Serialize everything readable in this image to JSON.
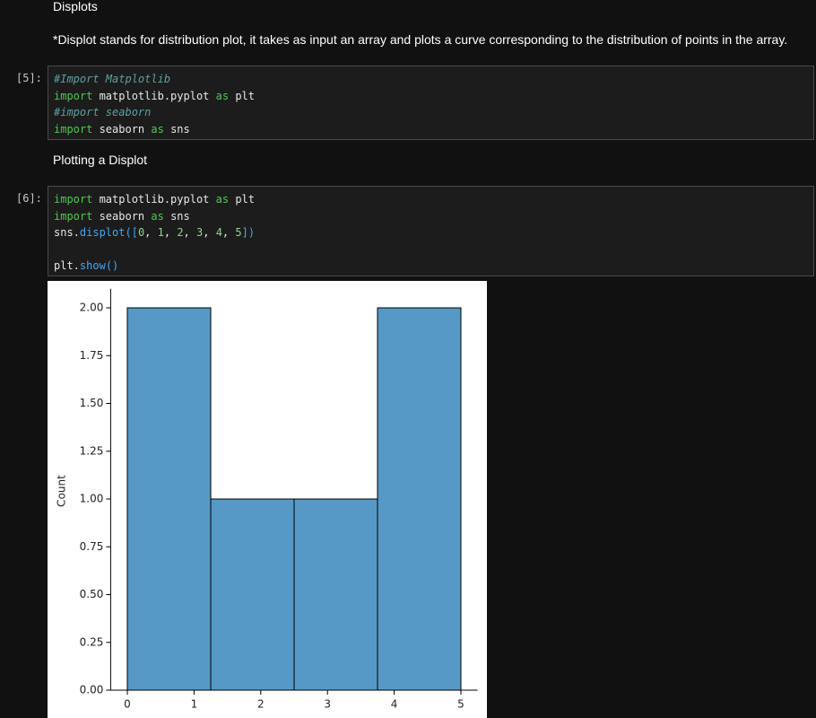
{
  "cells": [
    {
      "text": "Displots"
    },
    {
      "text": "*Displot stands for distribution plot, it takes as input an array and plots a curve corresponding to the distribution of points in the array."
    },
    {
      "prompt": "[5]:",
      "source": [
        [
          "#Import Matplotlib"
        ],
        [
          "import",
          " matplotlib.pyplot ",
          "as",
          " plt"
        ],
        [
          "#import seaborn"
        ],
        [
          "import",
          " seaborn ",
          "as",
          " sns"
        ]
      ]
    },
    {
      "text": "Plotting a Displot"
    },
    {
      "prompt": "[6]:",
      "source": [
        [
          "import",
          " matplotlib.pyplot ",
          "as",
          " plt"
        ],
        [
          "import",
          " seaborn ",
          "as",
          " sns"
        ],
        [
          "sns.",
          "displot",
          "([",
          "0",
          ", ",
          "1",
          ", ",
          "2",
          ", ",
          "3",
          ", ",
          "4",
          ", ",
          "5",
          "])"
        ],
        [],
        [
          "plt.",
          "show",
          "()"
        ]
      ]
    }
  ],
  "chart_data": {
    "type": "histogram",
    "bins": [
      0,
      1.25,
      2.5,
      3.75,
      5
    ],
    "values": [
      2,
      1,
      1,
      2
    ],
    "color": "#5799c6",
    "ylabel": "Count",
    "xlim": [
      -0.25,
      5.25
    ],
    "xticks": [
      0,
      1,
      2,
      3,
      4,
      5
    ],
    "ylim": [
      0,
      2.1
    ],
    "yticks": [
      {
        "value": 0,
        "label": "0.00"
      },
      {
        "value": 0.25,
        "label": "0.25"
      },
      {
        "value": 0.5,
        "label": "0.50"
      },
      {
        "value": 0.75,
        "label": "0.75"
      },
      {
        "value": 1,
        "label": "1.00"
      },
      {
        "value": 1.25,
        "label": "1.25"
      },
      {
        "value": 1.5,
        "label": "1.50"
      },
      {
        "value": 1.75,
        "label": "1.75"
      },
      {
        "value": 2,
        "label": "2.00"
      }
    ]
  }
}
